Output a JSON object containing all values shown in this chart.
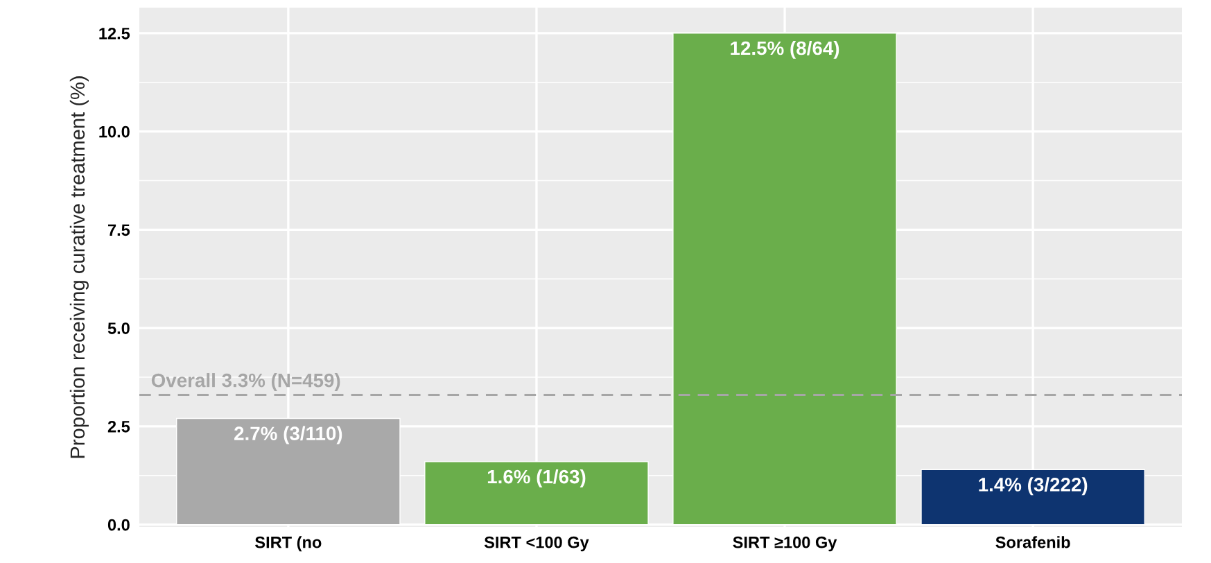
{
  "chart_data": {
    "type": "bar",
    "ylabel": "Proportion receiving curative treatment (%)",
    "categories": [
      "SIRT (no",
      "SIRT <100 Gy",
      "SIRT ≥100 Gy",
      "Sorafenib"
    ],
    "values": [
      2.7,
      1.6,
      12.5,
      1.4
    ],
    "colors": [
      "#a9a9a9",
      "#6aae4b",
      "#6aae4b",
      "#0e3470"
    ],
    "value_labels": [
      "2.7% (3/110)",
      "1.6% (1/63)",
      "12.5% (8/64)",
      "1.4% (3/222)"
    ],
    "ylim": [
      -0.06,
      13.15
    ],
    "yticks": [
      {
        "value": 0,
        "label": "0.0"
      },
      2.5,
      {
        "value": 5,
        "label": "5.0"
      },
      7.5,
      {
        "value": 10,
        "label": "10.0"
      },
      12.5
    ],
    "ref_lines": [
      {
        "axis": "y",
        "value": 3.3,
        "label": "Overall 3.3% (N=459)",
        "color": "#a6a6a6",
        "line_style": "dashed"
      }
    ],
    "grid": true
  }
}
